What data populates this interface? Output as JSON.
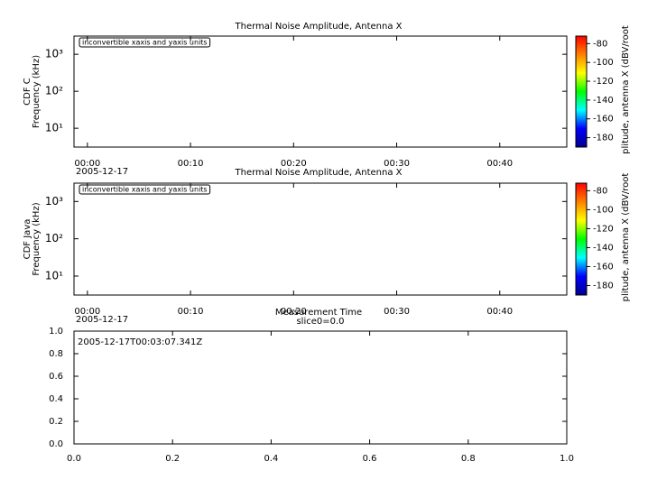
{
  "chart_data": [
    {
      "type": "spectrogram",
      "title": "Thermal Noise Amplitude, Antenna X",
      "ylabel": [
        "CDF C",
        "Frequency (kHz)"
      ],
      "annotation": "inconvertible xaxis and yaxis units",
      "xdate": "2005-12-17",
      "log_y": true,
      "xlim": [
        -1.3,
        46.5
      ],
      "xticks": [
        {
          "value": 0,
          "label": "00:00"
        },
        {
          "value": 10,
          "label": "00:10"
        },
        {
          "value": 20,
          "label": "00:20"
        },
        {
          "value": 30,
          "label": "00:30"
        },
        {
          "value": 40,
          "label": "00:40"
        }
      ],
      "ylim": [
        3.1,
        3100
      ],
      "yticks": [
        {
          "value": 10,
          "label": "10¹"
        },
        {
          "value": 100,
          "label": "10²"
        },
        {
          "value": 1000,
          "label": "10³"
        }
      ],
      "zlabel": "plitude, antenna X (dBV/root",
      "zlim": [
        -190,
        -72
      ],
      "zticks": [
        -80,
        -100,
        -120,
        -140,
        -160,
        -180
      ],
      "colormap": [
        "#00008f",
        "#0000ff",
        "#00ffff",
        "#00ff00",
        "#ffff00",
        "#ff8000",
        "#ff0000"
      ]
    },
    {
      "type": "spectrogram",
      "title": "Thermal Noise Amplitude, Antenna X",
      "ylabel": [
        "CDF Java",
        "Frequency (kHz)"
      ],
      "annotation": "inconvertible xaxis and yaxis units",
      "xdate": "2005-12-17",
      "log_y": true,
      "xlim": [
        -1.3,
        46.5
      ],
      "xticks": [
        {
          "value": 0,
          "label": "00:00"
        },
        {
          "value": 10,
          "label": "00:10"
        },
        {
          "value": 20,
          "label": "00:20"
        },
        {
          "value": 30,
          "label": "00:30"
        },
        {
          "value": 40,
          "label": "00:40"
        }
      ],
      "ylim": [
        3.1,
        3100
      ],
      "yticks": [
        {
          "value": 10,
          "label": "10¹"
        },
        {
          "value": 100,
          "label": "10²"
        },
        {
          "value": 1000,
          "label": "10³"
        }
      ],
      "zlabel": "plitude, antenna X (dBV/root",
      "zlim": [
        -190,
        -72
      ],
      "zticks": [
        -80,
        -100,
        -120,
        -140,
        -160,
        -180
      ],
      "colormap": [
        "#00008f",
        "#0000ff",
        "#00ffff",
        "#00ff00",
        "#ffff00",
        "#ff8000",
        "#ff0000"
      ]
    },
    {
      "type": "line",
      "title": "Measurement Time",
      "subtitle": "slice0=0.0",
      "annotation": "2005-12-17T00:03:07.341Z",
      "xlim": [
        0,
        1
      ],
      "xticks": [
        {
          "value": 0,
          "label": "0.0"
        },
        {
          "value": 0.2,
          "label": "0.2"
        },
        {
          "value": 0.4,
          "label": "0.4"
        },
        {
          "value": 0.6,
          "label": "0.6"
        },
        {
          "value": 0.8,
          "label": "0.8"
        },
        {
          "value": 1,
          "label": "1.0"
        }
      ],
      "ylim": [
        0,
        1
      ],
      "yticks": [
        {
          "value": 0,
          "label": "0.0"
        },
        {
          "value": 0.2,
          "label": "0.2"
        },
        {
          "value": 0.4,
          "label": "0.4"
        },
        {
          "value": 0.6,
          "label": "0.6"
        },
        {
          "value": 0.8,
          "label": "0.8"
        },
        {
          "value": 1,
          "label": "1.0"
        }
      ]
    }
  ]
}
